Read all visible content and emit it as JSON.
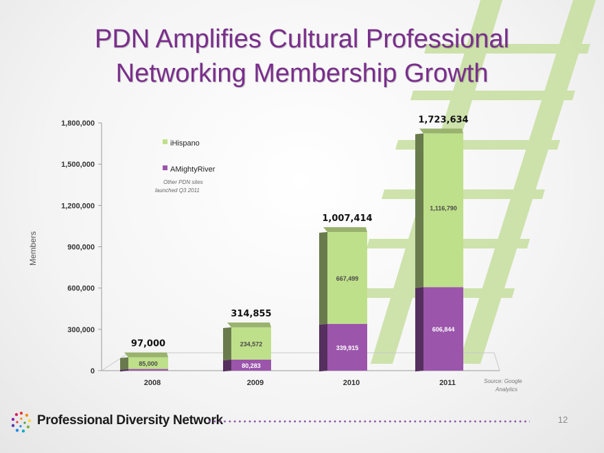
{
  "slide": {
    "title_line1": "PDN Amplifies Cultural Professional",
    "title_line2": "Networking Membership Growth",
    "page_number": "12",
    "footer_brand": "Professional Diversity Network"
  },
  "colors": {
    "title": "#7a2e8c",
    "ihispano": "#bfe08a",
    "amightyriver": "#9b55ab",
    "ladder": "#c7df9f"
  },
  "chart_data": {
    "type": "bar",
    "stacked": true,
    "categories": [
      "2008",
      "2009",
      "2010",
      "2011"
    ],
    "series": [
      {
        "name": "AMightyRiver",
        "values": [
          12000,
          80283,
          339915,
          606844
        ],
        "labels": [
          "",
          "80,283",
          "339,915",
          "606,844"
        ]
      },
      {
        "name": "iHispano",
        "values": [
          85000,
          234572,
          667499,
          1116790
        ],
        "labels": [
          "85,000",
          "234,572",
          "667,499",
          "1,116,790"
        ]
      }
    ],
    "totals": [
      "97,000",
      "314,855",
      "1,007,414",
      "1,723,634"
    ],
    "ylabel": "Members",
    "ylim": [
      0,
      1800000
    ],
    "yticks": [
      0,
      300000,
      600000,
      900000,
      1200000,
      1500000,
      1800000
    ],
    "ytick_labels": [
      "0",
      "300,000",
      "600,000",
      "900,000",
      "1,200,000",
      "1,500,000",
      "1,800,000"
    ],
    "legend": [
      "iHispano",
      "AMightyRiver"
    ],
    "legend_position": "top-left",
    "annotation": "Other PDN sites launched Q3 2011",
    "source": "Source: Google Analytics"
  }
}
